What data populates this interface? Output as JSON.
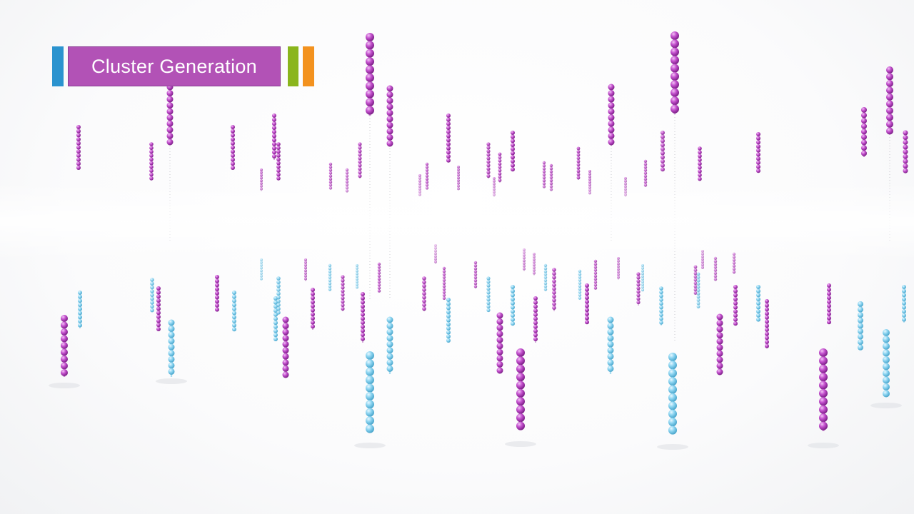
{
  "title": {
    "label": "Cluster Generation",
    "bg_color": "#b252b6"
  },
  "colors": {
    "blue_chip": "#2b93cf",
    "green_chip": "#8ab51d",
    "orange_chip": "#f3921f",
    "magenta_bead": "#b23fbd",
    "cyan_bead": "#7fcfee"
  }
}
